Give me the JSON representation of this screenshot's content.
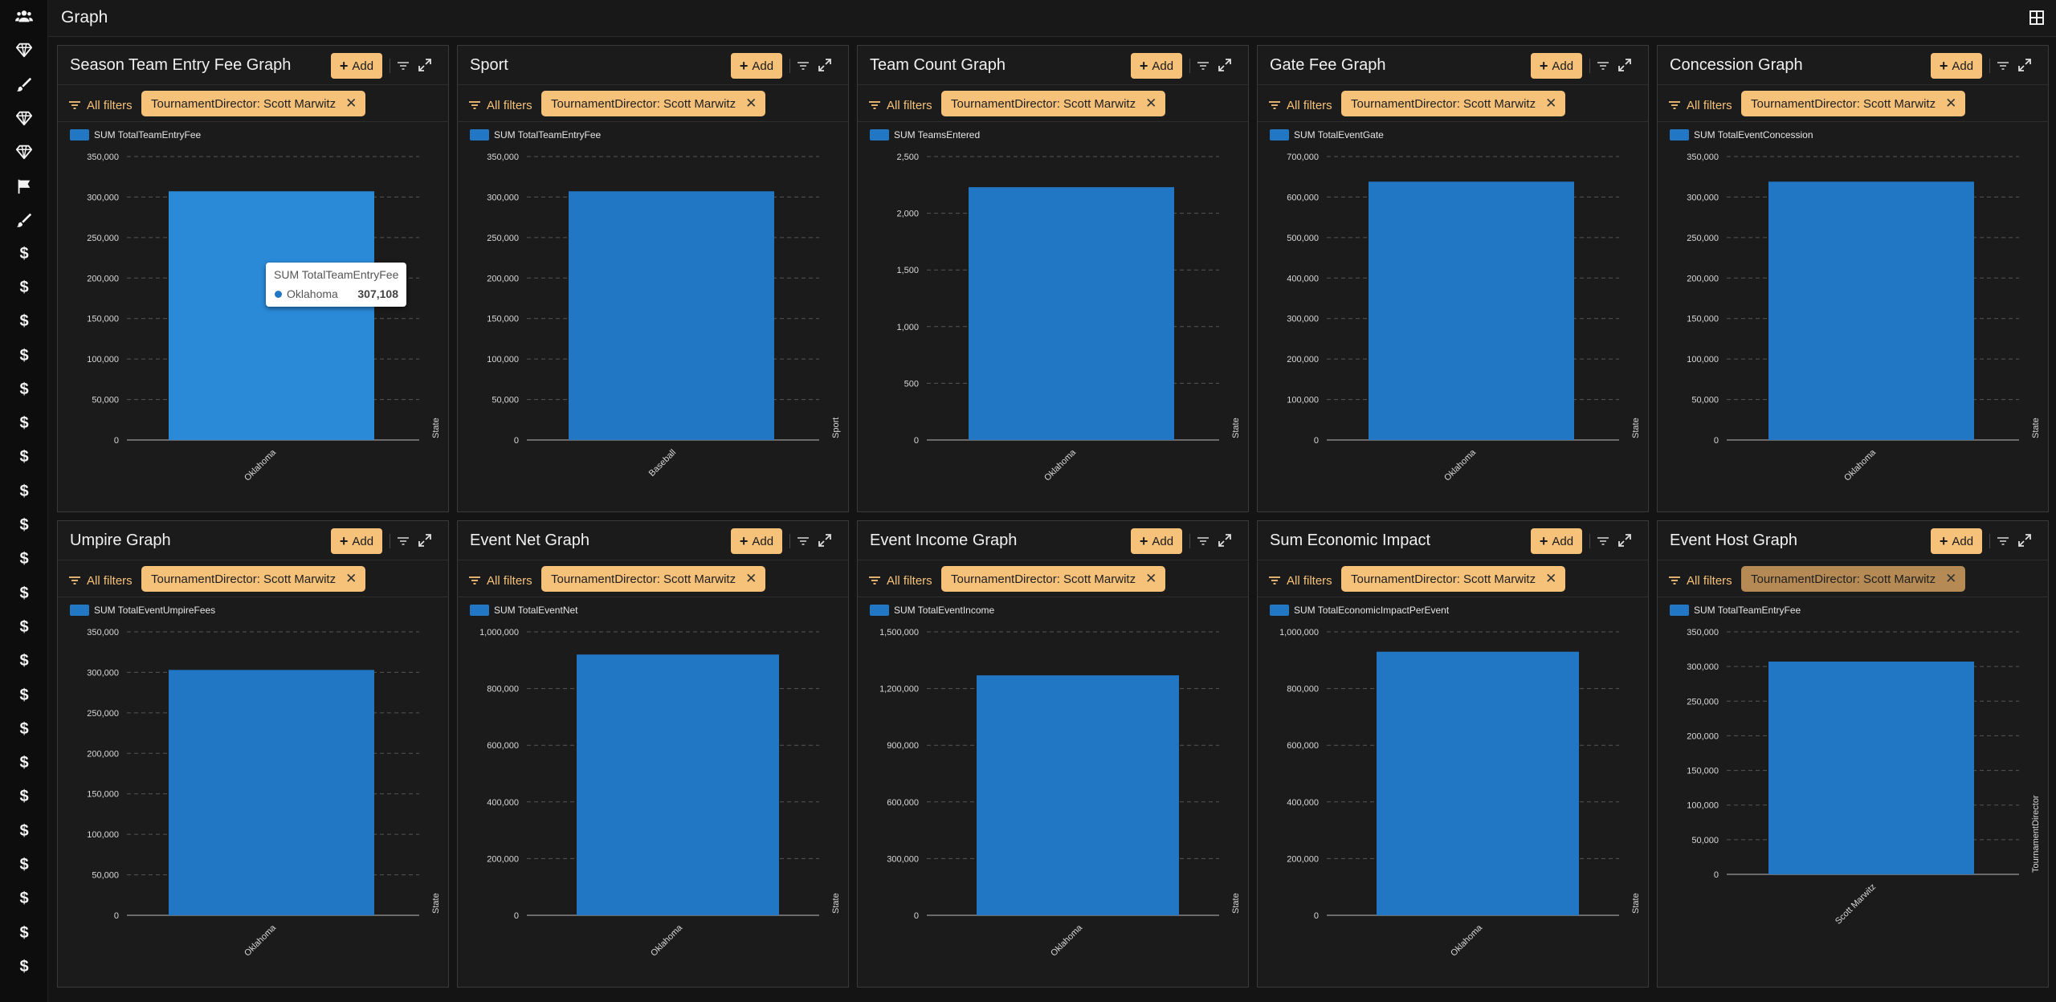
{
  "page": {
    "title": "Graph"
  },
  "sidebar": {
    "icons": [
      "users-icon",
      "diamond-icon",
      "brush-icon",
      "diamond-icon",
      "diamond-icon",
      "flag-icon",
      "brush-icon",
      "dollar-icon",
      "dollar-icon",
      "dollar-icon",
      "dollar-icon",
      "dollar-icon",
      "dollar-icon",
      "dollar-icon",
      "dollar-icon",
      "dollar-icon",
      "dollar-icon",
      "dollar-icon",
      "dollar-icon",
      "dollar-icon",
      "dollar-icon",
      "dollar-icon",
      "dollar-icon",
      "dollar-icon",
      "dollar-icon",
      "dollar-icon",
      "dollar-icon",
      "dollar-icon",
      "dollar-icon"
    ],
    "dollar_glyph": "$"
  },
  "common": {
    "add_label": "Add",
    "all_filters_label": "All filters",
    "filter_chip": "TournamentDirector: Scott Marwitz"
  },
  "colors": {
    "bar": "#2177c4",
    "accent": "#f6c27a",
    "background": "#1b1b1b"
  },
  "tooltip": {
    "title": "SUM TotalTeamEntryFee",
    "label": "Oklahoma",
    "value": "307,108"
  },
  "cards": [
    {
      "title": "Season Team Entry Fee Graph",
      "legend": "SUM TotalTeamEntryFee"
    },
    {
      "title": "Sport",
      "legend": "SUM TotalTeamEntryFee"
    },
    {
      "title": "Team Count Graph",
      "legend": "SUM TeamsEntered"
    },
    {
      "title": "Gate Fee Graph",
      "legend": "SUM TotalEventGate"
    },
    {
      "title": "Concession Graph",
      "legend": "SUM TotalEventConcession"
    },
    {
      "title": "Umpire Graph",
      "legend": "SUM TotalEventUmpireFees"
    },
    {
      "title": "Event Net Graph",
      "legend": "SUM TotalEventNet"
    },
    {
      "title": "Event Income Graph",
      "legend": "SUM TotalEventIncome"
    },
    {
      "title": "Sum Economic Impact",
      "legend": "SUM TotalEconomicImpactPerEvent"
    },
    {
      "title": "Event Host Graph",
      "legend": "SUM TotalTeamEntryFee"
    }
  ],
  "chart_data": [
    {
      "type": "bar",
      "categories": [
        "Oklahoma"
      ],
      "series": [
        {
          "name": "SUM TotalTeamEntryFee",
          "values": [
            307108
          ]
        }
      ],
      "xlabel": "State",
      "yticks": [
        "0",
        "50,000",
        "100,000",
        "150,000",
        "200,000",
        "250,000",
        "300,000",
        "350,000"
      ],
      "ylim": [
        0,
        350000
      ]
    },
    {
      "type": "bar",
      "categories": [
        "Baseball"
      ],
      "series": [
        {
          "name": "SUM TotalTeamEntryFee",
          "values": [
            307108
          ]
        }
      ],
      "xlabel": "Sport",
      "yticks": [
        "0",
        "50,000",
        "100,000",
        "150,000",
        "200,000",
        "250,000",
        "300,000",
        "350,000"
      ],
      "ylim": [
        0,
        350000
      ]
    },
    {
      "type": "bar",
      "categories": [
        "Oklahoma"
      ],
      "series": [
        {
          "name": "SUM TeamsEntered",
          "values": [
            2230
          ]
        }
      ],
      "xlabel": "State",
      "yticks": [
        "0",
        "500",
        "1,000",
        "1,500",
        "2,000",
        "2,500"
      ],
      "ylim": [
        0,
        2500
      ]
    },
    {
      "type": "bar",
      "categories": [
        "Oklahoma"
      ],
      "series": [
        {
          "name": "SUM TotalEventGate",
          "values": [
            638000
          ]
        }
      ],
      "xlabel": "State",
      "yticks": [
        "0",
        "100,000",
        "200,000",
        "300,000",
        "400,000",
        "500,000",
        "600,000",
        "700,000"
      ],
      "ylim": [
        0,
        700000
      ]
    },
    {
      "type": "bar",
      "categories": [
        "Oklahoma"
      ],
      "series": [
        {
          "name": "SUM TotalEventConcession",
          "values": [
            319000
          ]
        }
      ],
      "xlabel": "State",
      "yticks": [
        "0",
        "50,000",
        "100,000",
        "150,000",
        "200,000",
        "250,000",
        "300,000",
        "350,000"
      ],
      "ylim": [
        0,
        350000
      ]
    },
    {
      "type": "bar",
      "categories": [
        "Oklahoma"
      ],
      "series": [
        {
          "name": "SUM TotalEventUmpireFees",
          "values": [
            303000
          ]
        }
      ],
      "xlabel": "State",
      "yticks": [
        "0",
        "50,000",
        "100,000",
        "150,000",
        "200,000",
        "250,000",
        "300,000",
        "350,000"
      ],
      "ylim": [
        0,
        350000
      ]
    },
    {
      "type": "bar",
      "categories": [
        "Oklahoma"
      ],
      "series": [
        {
          "name": "SUM TotalEventNet",
          "values": [
            920000
          ]
        }
      ],
      "xlabel": "State",
      "yticks": [
        "0",
        "200,000",
        "400,000",
        "600,000",
        "800,000",
        "1,000,000"
      ],
      "ylim": [
        0,
        1000000
      ]
    },
    {
      "type": "bar",
      "categories": [
        "Oklahoma"
      ],
      "series": [
        {
          "name": "SUM TotalEventIncome",
          "values": [
            1270000
          ]
        }
      ],
      "xlabel": "State",
      "yticks": [
        "0",
        "300,000",
        "600,000",
        "900,000",
        "1,200,000",
        "1,500,000"
      ],
      "ylim": [
        0,
        1500000
      ]
    },
    {
      "type": "bar",
      "categories": [
        "Oklahoma"
      ],
      "series": [
        {
          "name": "SUM TotalEconomicImpactPerEvent",
          "values": [
            930000
          ]
        }
      ],
      "xlabel": "State",
      "yticks": [
        "0",
        "200,000",
        "400,000",
        "600,000",
        "800,000",
        "1,000,000"
      ],
      "ylim": [
        0,
        1000000
      ]
    },
    {
      "type": "bar",
      "categories": [
        "Scott Marwitz"
      ],
      "series": [
        {
          "name": "SUM TotalTeamEntryFee",
          "values": [
            307108
          ]
        }
      ],
      "xlabel": "TournamentDirector",
      "yticks": [
        "0",
        "50,000",
        "100,000",
        "150,000",
        "200,000",
        "250,000",
        "300,000",
        "350,000"
      ],
      "ylim": [
        0,
        350000
      ]
    }
  ]
}
